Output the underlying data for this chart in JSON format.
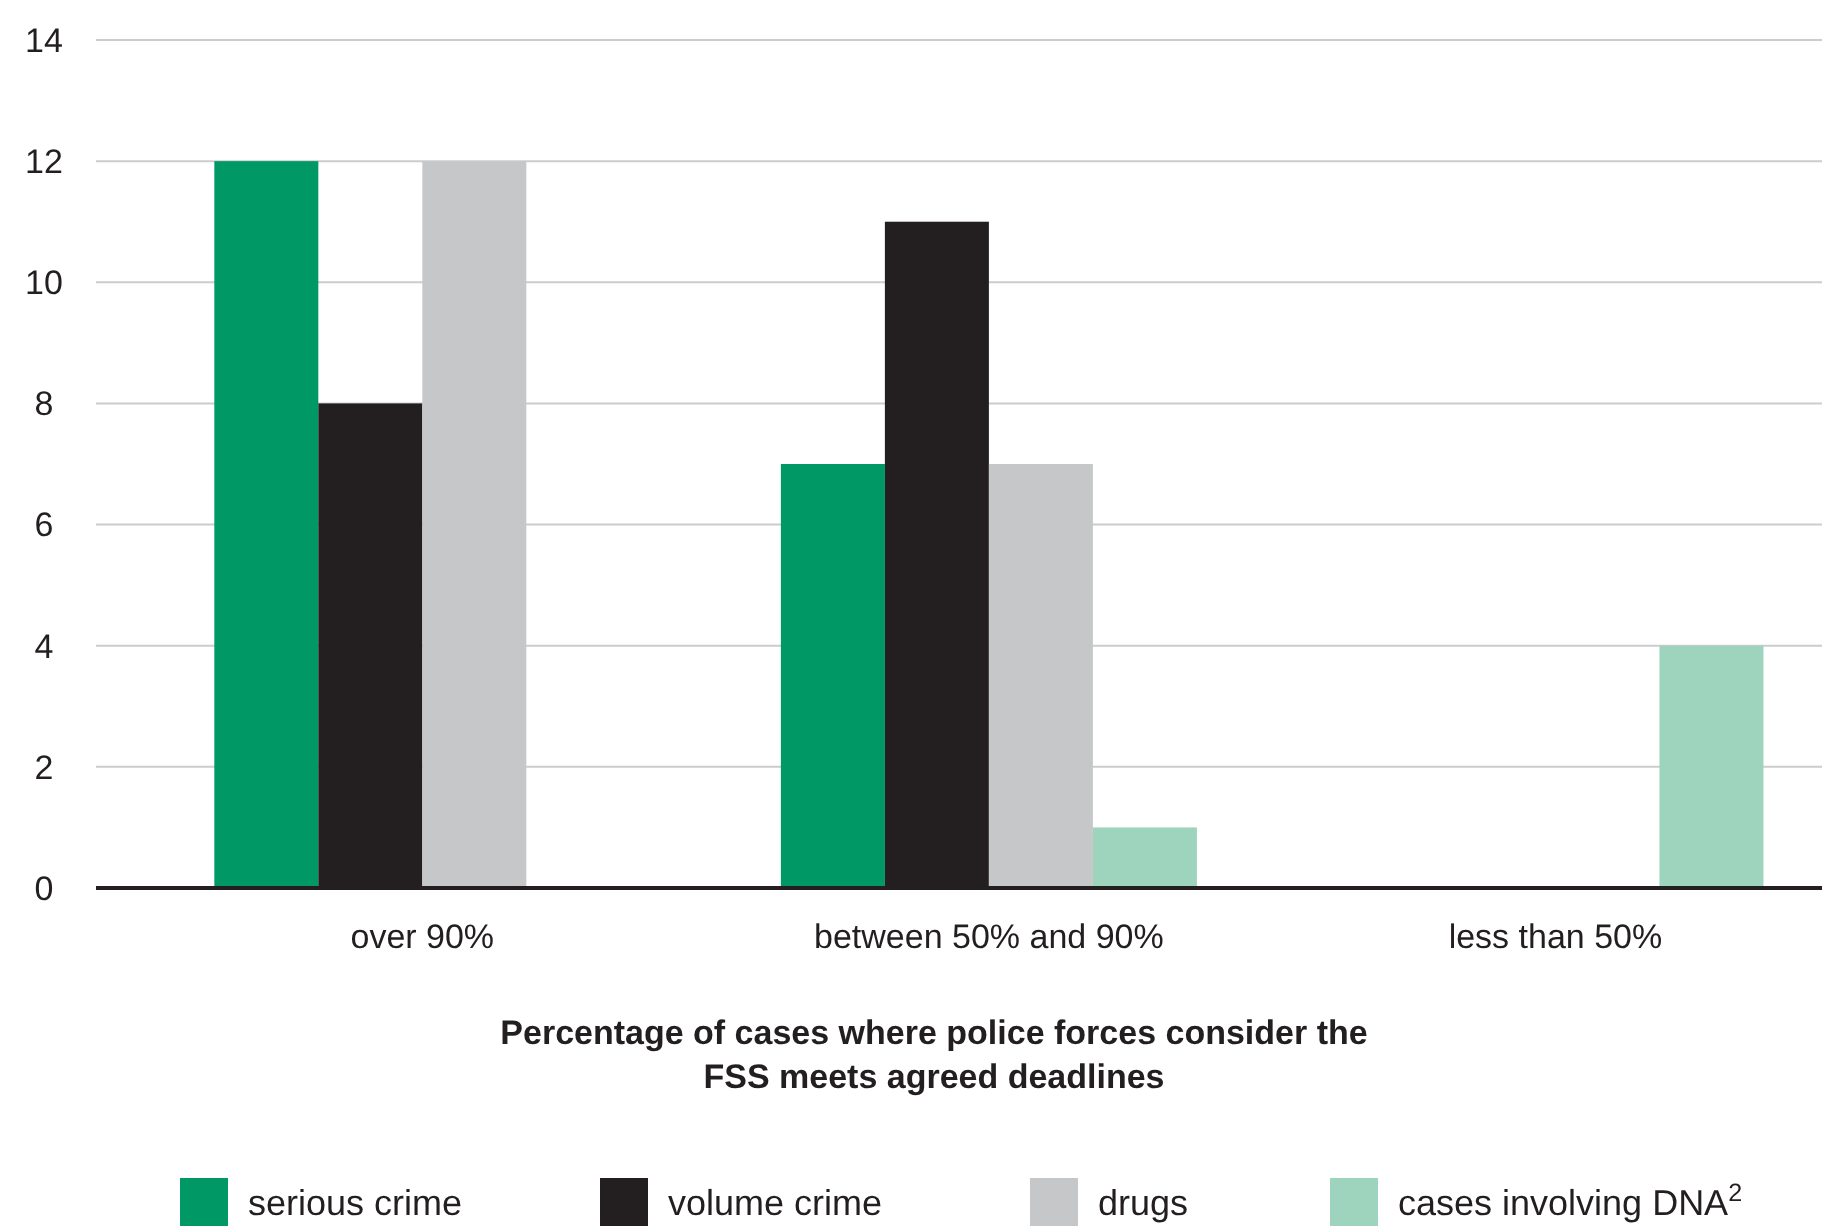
{
  "chart_data": {
    "type": "bar",
    "xlabel": "Percentage of cases where police forces consider the\nFSS meets agreed deadlines",
    "categories": [
      "over 90%",
      "between 50% and 90%",
      "less than 50%"
    ],
    "series": [
      {
        "name": "serious crime",
        "color": "#009966",
        "values": [
          12,
          7,
          0
        ]
      },
      {
        "name": "volume crime",
        "color": "#231f20",
        "values": [
          8,
          11,
          0
        ]
      },
      {
        "name": "drugs",
        "color": "#c6c7c9",
        "values": [
          12,
          7,
          0
        ]
      },
      {
        "name": "cases involving DNA$^{2}$",
        "color": "#9ed3be",
        "values": [
          0,
          1,
          4
        ]
      }
    ],
    "ylim": [
      0,
      14
    ],
    "yticks": [
      0,
      2,
      4,
      6,
      8,
      10,
      12,
      14
    ],
    "grid": "y",
    "legend": "bottom"
  }
}
